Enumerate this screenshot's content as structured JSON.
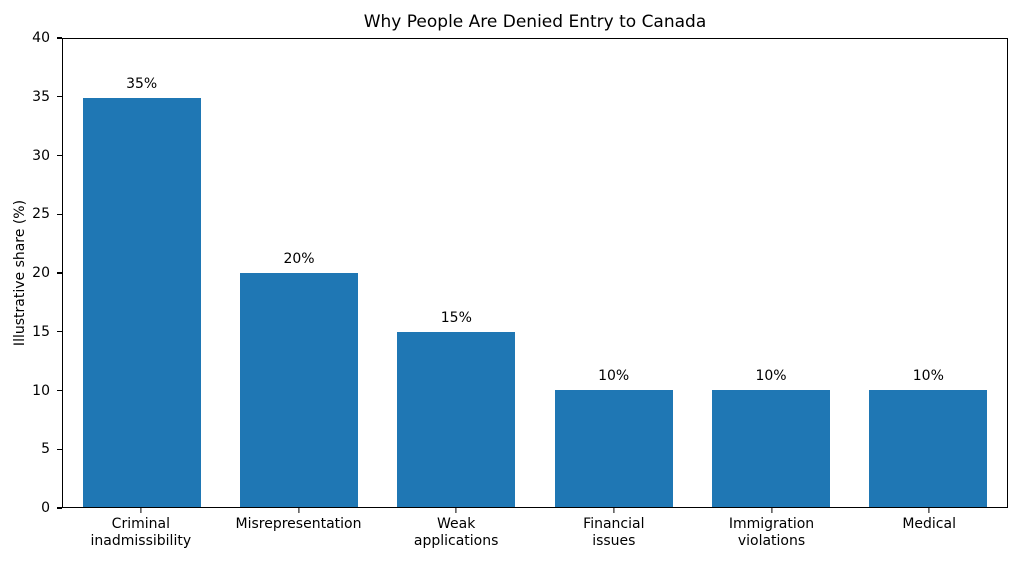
{
  "chart_data": {
    "type": "bar",
    "title": "Why People Are Denied Entry to Canada",
    "xlabel": "",
    "ylabel": "Illustrative share (%)",
    "categories": [
      "Criminal\ninadmissibility",
      "Misrepresentation",
      "Weak\napplications",
      "Financial\nissues",
      "Immigration\nviolations",
      "Medical"
    ],
    "values": [
      35,
      20,
      15,
      10,
      10,
      10
    ],
    "value_labels": [
      "35%",
      "20%",
      "15%",
      "10%",
      "10%",
      "10%"
    ],
    "ylim": [
      0,
      40
    ],
    "yticks": [
      0,
      5,
      10,
      15,
      20,
      25,
      30,
      35,
      40
    ],
    "bar_color": "#1f77b4",
    "axis_color": "#000000",
    "grid": false,
    "legend_position": "none",
    "bar_width_fraction": 0.75
  }
}
